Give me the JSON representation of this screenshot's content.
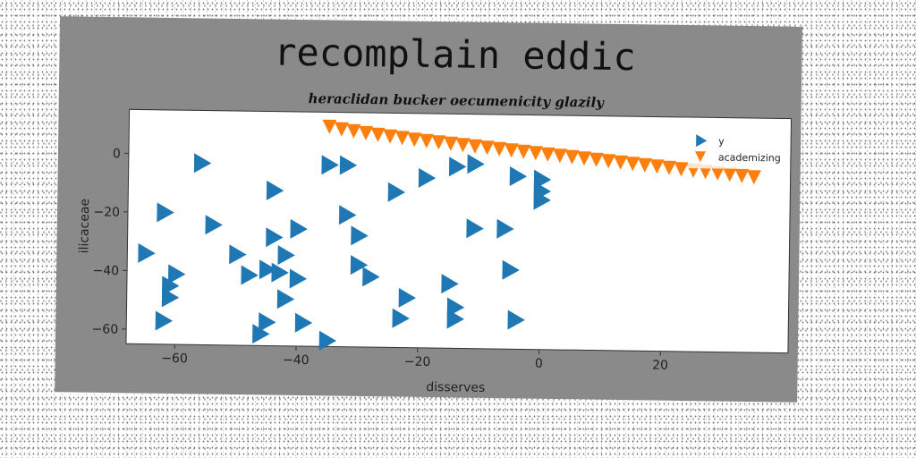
{
  "chart_data": {
    "type": "scatter",
    "title": "recomplain eddic",
    "subtitle": "heraclidan bucker oecumenicity glazily",
    "xlabel": "disserves",
    "ylabel": "ilicaceae",
    "xlim": [
      -68,
      41
    ],
    "ylim": [
      -65,
      15
    ],
    "xticks": [
      -60,
      -40,
      -20,
      0,
      20
    ],
    "yticks": [
      0,
      -20,
      -40,
      -60
    ],
    "grid": false,
    "legend": {
      "placement": "top-right"
    },
    "series": [
      {
        "name": "y",
        "marker": "triangle-right",
        "color": "#1f77b4",
        "points": [
          [
            -56,
            -3
          ],
          [
            -62,
            -20
          ],
          [
            -54,
            -24
          ],
          [
            -65,
            -34
          ],
          [
            -50,
            -34
          ],
          [
            -60,
            -41
          ],
          [
            -61,
            -45
          ],
          [
            -61,
            -49
          ],
          [
            -48,
            -41
          ],
          [
            -62,
            -57
          ],
          [
            -44,
            -12
          ],
          [
            -44,
            -28
          ],
          [
            -45,
            -39
          ],
          [
            -43,
            -40
          ],
          [
            -42,
            -34
          ],
          [
            -40,
            -25
          ],
          [
            -40,
            -42
          ],
          [
            -42,
            -49
          ],
          [
            -45,
            -57
          ],
          [
            -46,
            -61
          ],
          [
            -39,
            -57
          ],
          [
            -35,
            -63
          ],
          [
            -35,
            -3
          ],
          [
            -32,
            -3
          ],
          [
            -32,
            -20
          ],
          [
            -30,
            -27
          ],
          [
            -30,
            -37
          ],
          [
            -28,
            -41
          ],
          [
            -24,
            -12
          ],
          [
            -19,
            -7
          ],
          [
            -14,
            -3
          ],
          [
            -11,
            -2
          ],
          [
            -22,
            -48
          ],
          [
            -23,
            -55
          ],
          [
            -15,
            -43
          ],
          [
            -14,
            -51
          ],
          [
            -14,
            -55
          ],
          [
            -11,
            -24
          ],
          [
            -6,
            -24
          ],
          [
            -5,
            -38
          ],
          [
            -4,
            -6
          ],
          [
            0,
            -7
          ],
          [
            0,
            -11
          ],
          [
            0,
            -14
          ],
          [
            -4,
            -55
          ]
        ]
      },
      {
        "name": "academizing",
        "marker": "triangle-down",
        "color": "#ff7f0e",
        "points": [
          [
            -35,
            10
          ],
          [
            -33,
            9.2
          ],
          [
            -31,
            8.6
          ],
          [
            -29,
            8.0
          ],
          [
            -27,
            7.5
          ],
          [
            -25,
            7.0
          ],
          [
            -23,
            6.5
          ],
          [
            -21,
            6.0
          ],
          [
            -19,
            5.6
          ],
          [
            -17,
            5.2
          ],
          [
            -15,
            4.8
          ],
          [
            -13,
            4.4
          ],
          [
            -11,
            4.0
          ],
          [
            -9,
            3.6
          ],
          [
            -7,
            3.2
          ],
          [
            -5,
            2.8
          ],
          [
            -3,
            2.4
          ],
          [
            -1,
            2.0
          ],
          [
            1,
            1.6
          ],
          [
            3,
            1.2
          ],
          [
            5,
            0.8
          ],
          [
            7,
            0.4
          ],
          [
            9,
            0.0
          ],
          [
            11,
            -0.4
          ],
          [
            13,
            -0.8
          ],
          [
            15,
            -1.2
          ],
          [
            17,
            -1.6
          ],
          [
            19,
            -2.0
          ],
          [
            21,
            -2.4
          ],
          [
            23,
            -2.8
          ],
          [
            25,
            -3.2
          ],
          [
            27,
            -3.6
          ],
          [
            29,
            -4.0
          ],
          [
            31,
            -4.4
          ],
          [
            33,
            -4.8
          ],
          [
            35,
            -5.2
          ]
        ]
      }
    ]
  }
}
